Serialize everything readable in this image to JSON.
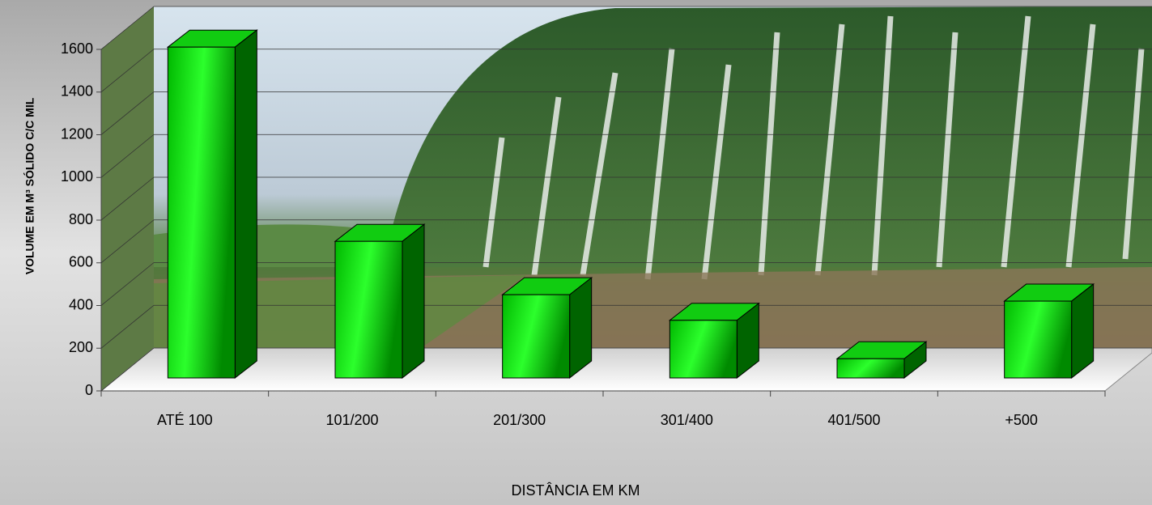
{
  "chart_data": {
    "type": "bar3d",
    "x_label": "DISTÂNCIA EM KM",
    "y_label": "VOLUME EM M³ SÓLIDO C/C MIL",
    "categories": [
      "ATÉ 100",
      "101/200",
      "201/300",
      "301/400",
      "401/500",
      "+500"
    ],
    "values": [
      1550,
      640,
      390,
      270,
      90,
      360
    ],
    "color": "#00e600",
    "ylim": [
      0,
      1600
    ],
    "yticks": [
      0,
      200,
      400,
      600,
      800,
      1000,
      1200,
      1400,
      1600
    ],
    "grid": true
  }
}
